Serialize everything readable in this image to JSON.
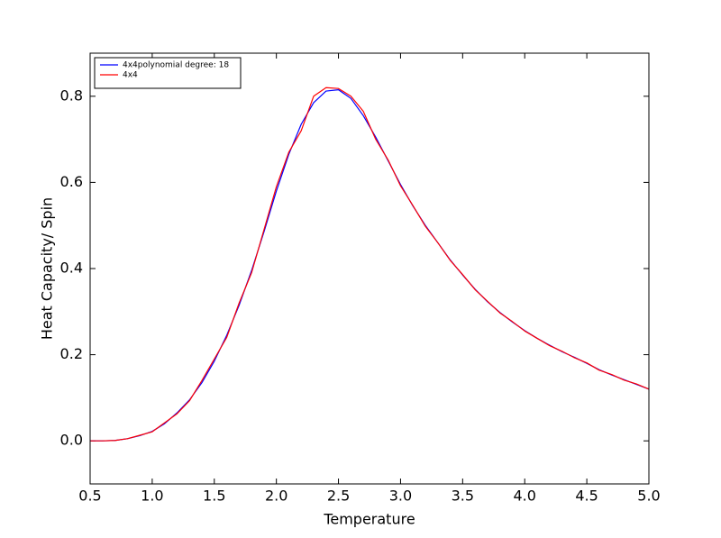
{
  "chart_data": {
    "type": "line",
    "xlabel": "Temperature",
    "ylabel": "Heat Capacity/ Spin",
    "x": [
      0.5,
      0.6,
      0.7,
      0.8,
      0.9,
      1.0,
      1.1,
      1.2,
      1.3,
      1.4,
      1.5,
      1.6,
      1.7,
      1.8,
      1.9,
      2.0,
      2.1,
      2.2,
      2.3,
      2.4,
      2.5,
      2.6,
      2.7,
      2.8,
      2.9,
      3.0,
      3.1,
      3.2,
      3.3,
      3.4,
      3.5,
      3.6,
      3.7,
      3.8,
      3.9,
      4.0,
      4.1,
      4.2,
      4.3,
      4.4,
      4.5,
      4.6,
      4.7,
      4.8,
      4.9,
      5.0
    ],
    "series": [
      {
        "name": "4x4polynomial degree: 18",
        "color": "#0000ff",
        "values": [
          0.0,
          0.0,
          0.001,
          0.005,
          0.012,
          0.022,
          0.04,
          0.065,
          0.095,
          0.135,
          0.185,
          0.245,
          0.315,
          0.395,
          0.485,
          0.58,
          0.665,
          0.735,
          0.785,
          0.812,
          0.815,
          0.795,
          0.755,
          0.705,
          0.65,
          0.595,
          0.545,
          0.5,
          0.46,
          0.42,
          0.385,
          0.352,
          0.323,
          0.298,
          0.276,
          0.256,
          0.238,
          0.222,
          0.207,
          0.194,
          0.18,
          0.165,
          0.153,
          0.142,
          0.131,
          0.12
        ]
      },
      {
        "name": "4x4",
        "color": "#ff0000",
        "values": [
          0.0,
          0.0,
          0.001,
          0.005,
          0.013,
          0.021,
          0.042,
          0.063,
          0.093,
          0.14,
          0.19,
          0.24,
          0.32,
          0.39,
          0.49,
          0.59,
          0.67,
          0.72,
          0.8,
          0.82,
          0.818,
          0.8,
          0.765,
          0.7,
          0.652,
          0.592,
          0.546,
          0.498,
          0.46,
          0.419,
          0.386,
          0.351,
          0.324,
          0.297,
          0.277,
          0.255,
          0.238,
          0.221,
          0.208,
          0.193,
          0.181,
          0.164,
          0.154,
          0.141,
          0.132,
          0.12
        ]
      }
    ],
    "xlim": [
      0.5,
      5.0
    ],
    "xticks": [
      {
        "value": 0.5,
        "label": "0.5"
      },
      {
        "value": 1.0,
        "label": "1.0"
      },
      {
        "value": 1.5,
        "label": "1.5"
      },
      {
        "value": 2.0,
        "label": "2.0"
      },
      {
        "value": 2.5,
        "label": "2.5"
      },
      {
        "value": 3.0,
        "label": "3.0"
      },
      {
        "value": 3.5,
        "label": "3.5"
      },
      {
        "value": 4.0,
        "label": "4.0"
      },
      {
        "value": 4.5,
        "label": "4.5"
      },
      {
        "value": 5.0,
        "label": "5.0"
      }
    ],
    "ylim": [
      -0.1,
      0.9
    ],
    "yticks": [
      {
        "value": 0.0,
        "label": "0.0"
      },
      {
        "value": 0.2,
        "label": "0.2"
      },
      {
        "value": 0.4,
        "label": "0.4"
      },
      {
        "value": 0.6,
        "label": "0.6"
      },
      {
        "value": 0.8,
        "label": "0.8"
      }
    ],
    "grid": false,
    "legend": "upper left"
  }
}
